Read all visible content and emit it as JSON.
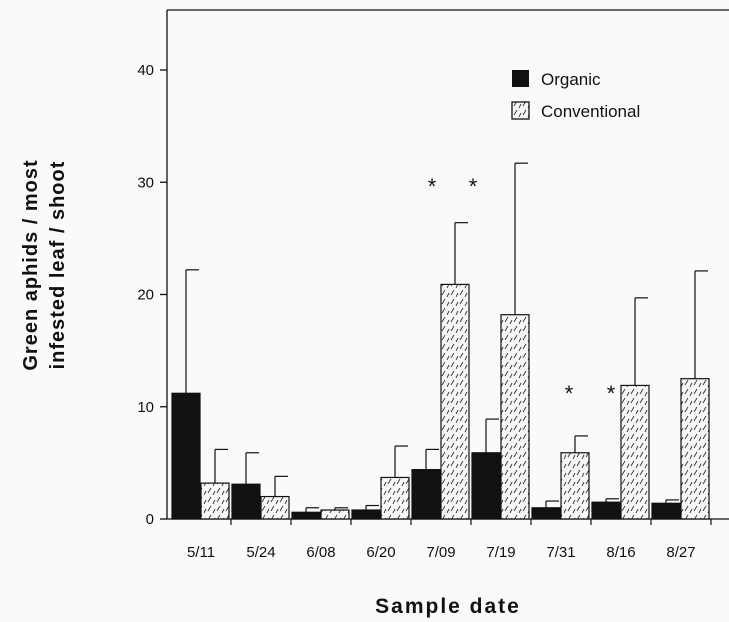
{
  "chart_data": {
    "type": "bar",
    "categories": [
      "5/11",
      "5/24",
      "6/08",
      "6/20",
      "7/09",
      "7/19",
      "7/31",
      "8/16",
      "8/27"
    ],
    "series": [
      {
        "name": "Organic",
        "values": [
          11.2,
          3.1,
          0.6,
          0.8,
          4.4,
          5.9,
          1.0,
          1.5,
          1.4
        ],
        "error": [
          11.0,
          2.8,
          0.4,
          0.4,
          1.8,
          3.0,
          0.6,
          0.3,
          0.3
        ]
      },
      {
        "name": "Conventional",
        "values": [
          3.2,
          2.0,
          0.8,
          3.7,
          20.9,
          18.2,
          5.9,
          11.9,
          12.5
        ],
        "error": [
          3.0,
          1.8,
          0.2,
          2.8,
          5.5,
          13.5,
          1.5,
          7.8,
          9.6
        ]
      }
    ],
    "significance": [
      "*",
      "*",
      "*",
      "*"
    ],
    "ylim": [
      0,
      45
    ],
    "yticks": [
      0,
      10,
      20,
      30,
      40
    ],
    "ylabel_line1": "Green  aphids  /  most",
    "ylabel_line2": "infested  leaf  /  shoot",
    "xlabel": "Sample   date",
    "legend_position": "top-right",
    "colors": {
      "organic": "#111111",
      "conventional_fill": "#f5f5f5",
      "axis": "#111111"
    }
  }
}
